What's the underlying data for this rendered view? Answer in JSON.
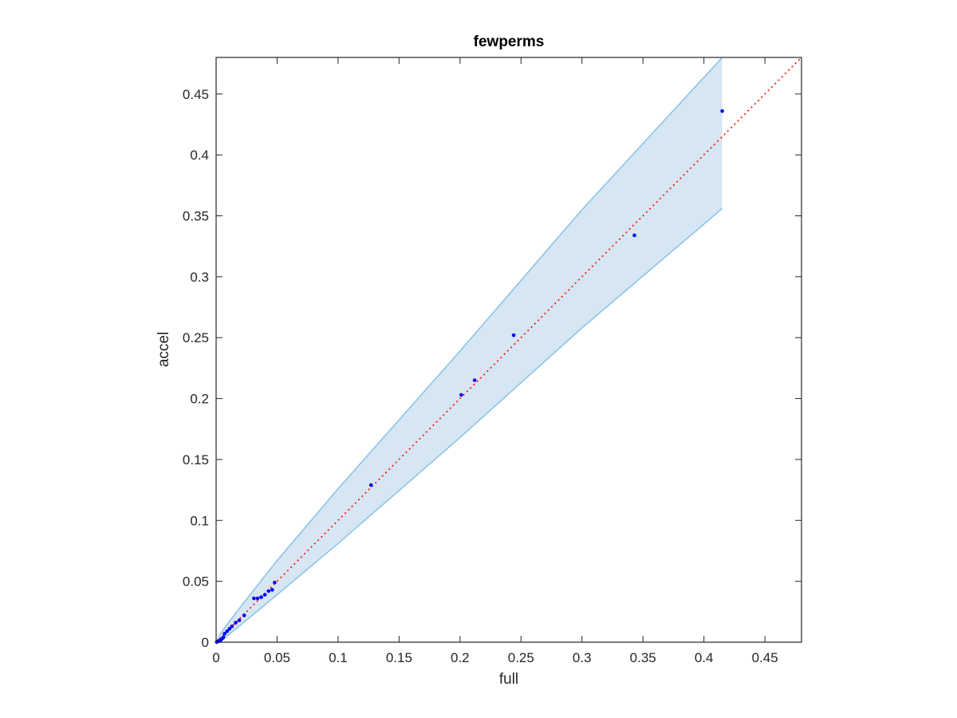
{
  "chart_data": {
    "type": "scatter",
    "title": "fewperms",
    "xlabel": "full",
    "ylabel": "accel",
    "xlim": [
      0,
      0.48
    ],
    "ylim": [
      0,
      0.48
    ],
    "xticks": [
      0,
      0.05,
      0.1,
      0.15,
      0.2,
      0.25,
      0.3,
      0.35,
      0.4,
      0.45
    ],
    "yticks": [
      0,
      0.05,
      0.1,
      0.15,
      0.2,
      0.25,
      0.3,
      0.35,
      0.4,
      0.45
    ],
    "grid": false,
    "colors": {
      "points": "#0000ff",
      "reference_line": "#ff0000",
      "band_fill": "#d6e6f3",
      "band_edge": "#8ec3e6",
      "axes": "#262626"
    },
    "confidence_band": {
      "x": [
        0,
        0.005,
        0.01,
        0.02,
        0.05,
        0.1,
        0.2,
        0.3,
        0.415
      ],
      "upper": [
        0,
        0.009,
        0.016,
        0.029,
        0.067,
        0.126,
        0.239,
        0.355,
        0.48
      ],
      "lower": [
        0,
        0.002,
        0.006,
        0.014,
        0.039,
        0.081,
        0.168,
        0.258,
        0.356
      ]
    },
    "reference_line": {
      "x": [
        0,
        0.48
      ],
      "y": [
        0,
        0.48
      ],
      "style": "dotted"
    },
    "points": [
      {
        "x": 0.415,
        "y": 0.436
      },
      {
        "x": 0.343,
        "y": 0.334
      },
      {
        "x": 0.244,
        "y": 0.252
      },
      {
        "x": 0.212,
        "y": 0.215
      },
      {
        "x": 0.201,
        "y": 0.203
      },
      {
        "x": 0.127,
        "y": 0.129
      },
      {
        "x": 0.048,
        "y": 0.049
      },
      {
        "x": 0.046,
        "y": 0.043
      },
      {
        "x": 0.043,
        "y": 0.042
      },
      {
        "x": 0.04,
        "y": 0.039
      },
      {
        "x": 0.037,
        "y": 0.037
      },
      {
        "x": 0.034,
        "y": 0.036
      },
      {
        "x": 0.031,
        "y": 0.036
      },
      {
        "x": 0.023,
        "y": 0.022
      },
      {
        "x": 0.019,
        "y": 0.018
      },
      {
        "x": 0.016,
        "y": 0.016
      },
      {
        "x": 0.013,
        "y": 0.013
      },
      {
        "x": 0.011,
        "y": 0.011
      },
      {
        "x": 0.009,
        "y": 0.009
      },
      {
        "x": 0.007,
        "y": 0.007
      },
      {
        "x": 0.006,
        "y": 0.004
      },
      {
        "x": 0.005,
        "y": 0.003
      },
      {
        "x": 0.004,
        "y": 0.002
      },
      {
        "x": 0.003,
        "y": 0.001
      },
      {
        "x": 0.002,
        "y": 0.001
      },
      {
        "x": 0.001,
        "y": 0.0005
      },
      {
        "x": 0.0005,
        "y": 0.0002
      }
    ]
  }
}
